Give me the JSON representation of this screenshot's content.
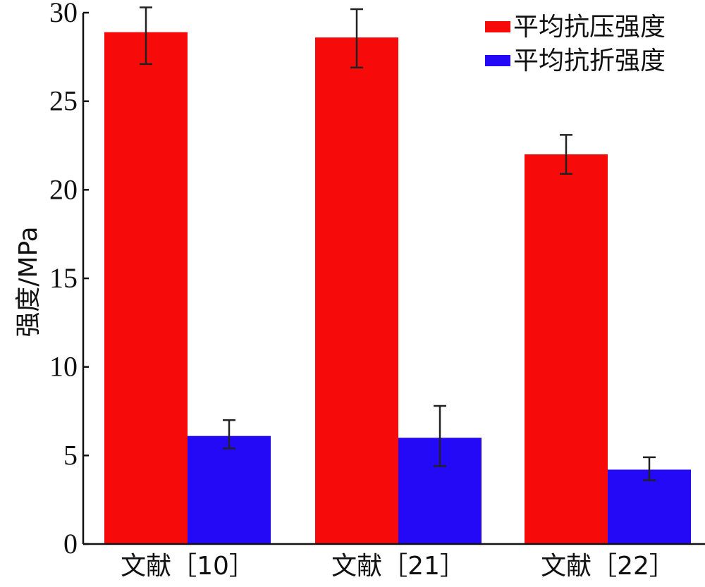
{
  "chart_data": {
    "type": "bar",
    "categories": [
      "文献［10］",
      "文献［21］",
      "文献［22］"
    ],
    "ylabel": "强度/MPa",
    "xlabel": "",
    "ylim": [
      0,
      30
    ],
    "yticks": [
      0,
      5,
      10,
      15,
      20,
      25,
      30
    ],
    "grid": false,
    "legend_position": "top-right",
    "series": [
      {
        "name": "平均抗压强度",
        "color": "#f70a0a",
        "values": [
          28.9,
          28.6,
          22.0
        ],
        "error_low": [
          27.1,
          26.9,
          20.9
        ],
        "error_high": [
          30.3,
          30.2,
          23.1
        ]
      },
      {
        "name": "平均抗折强度",
        "color": "#2409f7",
        "values": [
          6.1,
          6.0,
          4.2
        ],
        "error_low": [
          5.4,
          4.4,
          3.6
        ],
        "error_high": [
          7.0,
          7.8,
          4.9
        ]
      }
    ]
  }
}
